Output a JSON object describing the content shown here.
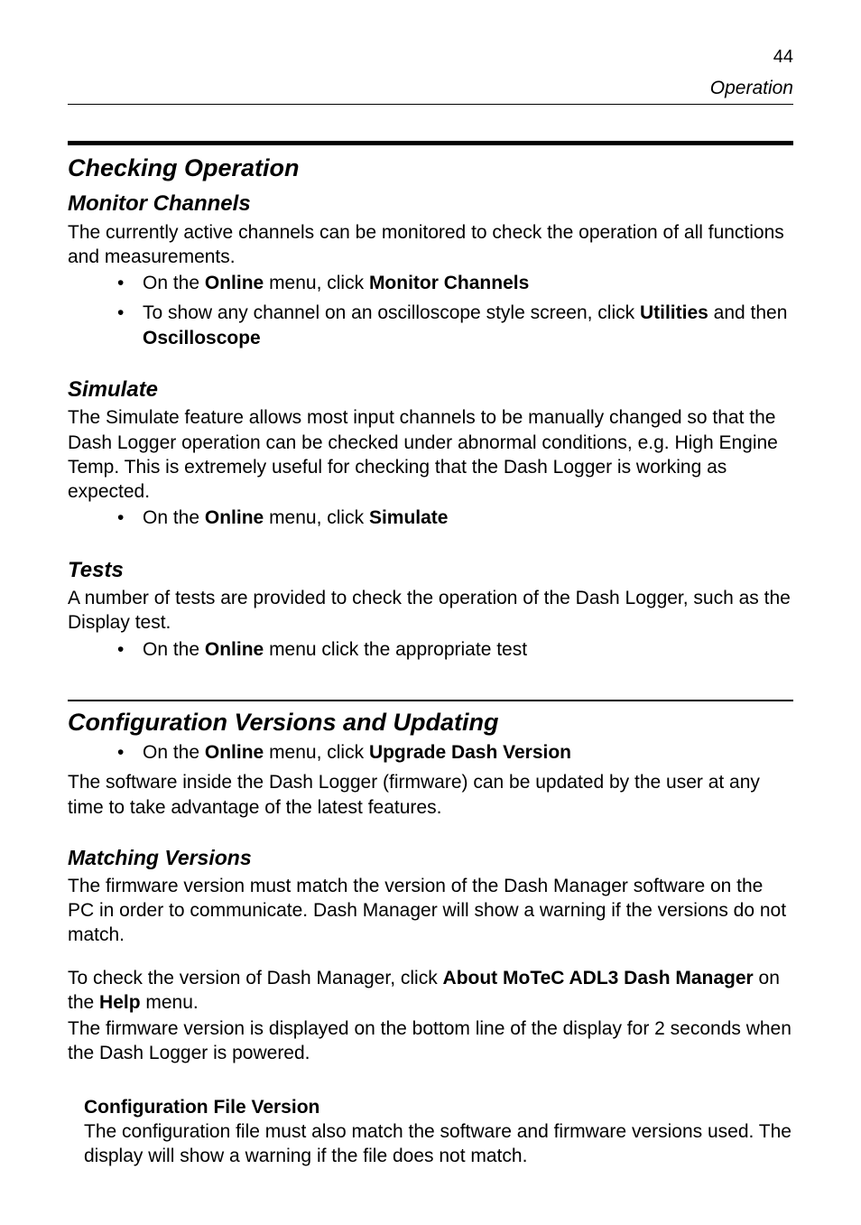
{
  "page": {
    "number": "44",
    "header": "Operation"
  },
  "section1": {
    "title": "Checking Operation",
    "sub1": {
      "title": "Monitor Channels",
      "intro": "The currently active channels can be monitored to check the operation of all functions and measurements.",
      "bullets": [
        {
          "pre": "On the ",
          "bold1": "Online",
          "mid": " menu, click ",
          "bold2": "Monitor Channels"
        },
        {
          "pre": "To show any channel on an oscilloscope style screen, click ",
          "bold1": "Utilities",
          "mid": " and then ",
          "bold2": "Oscilloscope"
        }
      ]
    },
    "sub2": {
      "title": "Simulate",
      "intro": "The Simulate feature allows most input channels to be manually changed so that the Dash Logger operation can be checked under abnormal conditions, e.g. High Engine Temp. This is extremely useful for checking that the Dash Logger is working as expected.",
      "bullets": [
        {
          "pre": "On the ",
          "bold1": "Online",
          "mid": " menu, click ",
          "bold2": "Simulate"
        }
      ]
    },
    "sub3": {
      "title": "Tests",
      "intro": "A number of tests are provided to check the operation of the Dash Logger, such as the Display test.",
      "bullets": [
        {
          "pre": "On the ",
          "bold1": "Online",
          "mid": " menu click the appropriate test"
        }
      ]
    }
  },
  "section2": {
    "title": "Configuration Versions and Updating",
    "bullets": [
      {
        "pre": "On the ",
        "bold1": "Online",
        "mid": " menu, click ",
        "bold2": "Upgrade Dash Version"
      }
    ],
    "para1": "The software inside the Dash Logger (firmware) can be updated by the user at any time to take advantage of the latest features.",
    "sub1": {
      "title": "Matching Versions",
      "para1": "The firmware version must match the version of the Dash Manager software on the PC in order to communicate. Dash Manager will show a warning if the versions do not match.",
      "check": {
        "pre": "To check the version of Dash Manager, click ",
        "bold1": "About MoTeC ADL3 Dash Manager",
        "mid": " on the ",
        "bold2": "Help",
        "post": " menu."
      },
      "para2": "The firmware version is displayed on the bottom line of the display for 2 seconds when the Dash Logger is powered."
    },
    "note": {
      "title": "Configuration File Version",
      "body": "The configuration file must also match the software and firmware versions used. The display will show a warning if the file does not match."
    }
  }
}
